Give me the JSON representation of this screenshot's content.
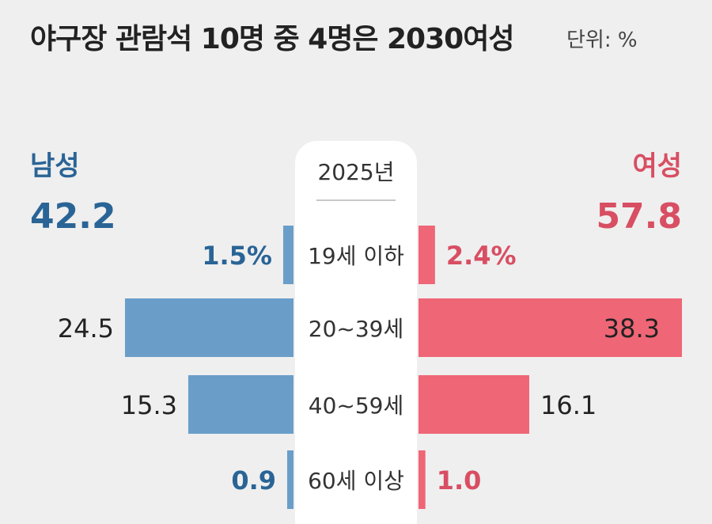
{
  "title": "야구장 관람석 10명 중 4명은 2030여성",
  "unit": "단위: %",
  "legend": {
    "male_label": "남성",
    "male_total": "42.2",
    "female_label": "여성",
    "female_total": "57.8"
  },
  "colors": {
    "male": "#6a9ec9",
    "male_text": "#2a6496",
    "female": "#ef6676",
    "female_text": "#d84e63",
    "value_text": "#222222"
  },
  "chart_data": {
    "type": "bar",
    "subtype": "population-pyramid",
    "year_label": "2025년",
    "categories": [
      "19세 이하",
      "20~39세",
      "40~59세",
      "60세 이상"
    ],
    "series": [
      {
        "name": "남성",
        "values": [
          1.5,
          24.5,
          15.3,
          0.9
        ],
        "labels": [
          "1.5%",
          "24.5",
          "15.3",
          "0.9"
        ]
      },
      {
        "name": "여성",
        "values": [
          2.4,
          38.3,
          16.1,
          1.0
        ],
        "labels": [
          "2.4%",
          "38.3",
          "16.1",
          "1.0"
        ]
      }
    ],
    "max_value": 38.3
  }
}
